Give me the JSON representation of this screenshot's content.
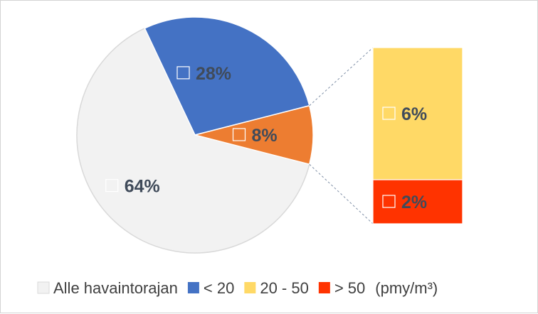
{
  "chart_data": {
    "type": "pie",
    "variant": "bar-of-pie",
    "slices": [
      {
        "label": "Alle havaintorajan",
        "value": 64,
        "color": "#f2f2f2"
      },
      {
        "label": "< 20",
        "value": 28,
        "color": "#4472c4"
      },
      {
        "label": "20 - 50 + > 50",
        "value": 8,
        "color": "#ed7d31"
      }
    ],
    "bar_breakdown": [
      {
        "label": "20 - 50",
        "value": 6,
        "color": "#ffd966"
      },
      {
        "label": "> 50",
        "value": 2,
        "color": "#ff3300"
      }
    ],
    "data_labels": [
      "64%",
      "28%",
      "8%",
      "6%",
      "2%"
    ],
    "legend": {
      "placement": "bottom",
      "entries": [
        {
          "label": "Alle havaintorajan",
          "color": "#f2f2f2"
        },
        {
          "label": "< 20",
          "color": "#4472c4"
        },
        {
          "label": "20 - 50",
          "color": "#ffd966"
        },
        {
          "label": "> 50",
          "color": "#ff3300"
        }
      ],
      "unit": "(pmy/m³)"
    },
    "title": ""
  }
}
